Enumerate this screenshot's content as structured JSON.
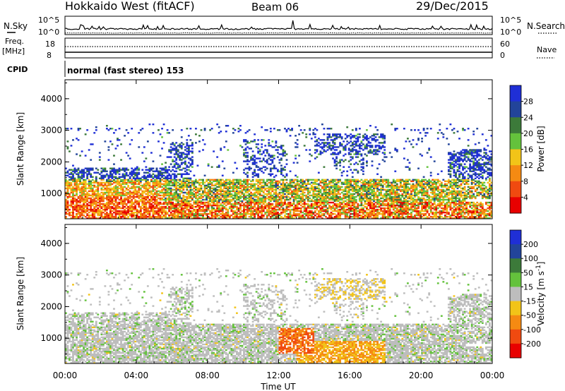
{
  "header": {
    "title": "Hokkaido West (fitACF)",
    "beam": "Beam 06",
    "date": "29/Dec/2015"
  },
  "top_panels": {
    "nsky_label": "N.Sky",
    "nsearch_label": "N.Search",
    "noise_ticks": [
      "10^5",
      "10^0"
    ],
    "freq_label": "Freq.",
    "freq_unit": "[MHz]",
    "freq_ticks": [
      "18",
      "8"
    ],
    "nave_label": "Nave",
    "nave_ticks": [
      "60",
      "0"
    ],
    "cpid_label": "CPID",
    "cpid_text": "normal (fast stereo) 153"
  },
  "x_axis": {
    "label": "Time UT",
    "ticks": [
      "00:00",
      "04:00",
      "08:00",
      "12:00",
      "16:00",
      "20:00",
      "00:00"
    ],
    "range_hours": [
      0,
      24
    ]
  },
  "colors": {
    "power": [
      "#1f2fd6",
      "#22449a",
      "#3c7a3a",
      "#64c23c",
      "#f2c418",
      "#f58a12",
      "#f04a10",
      "#e80000"
    ],
    "velocity": [
      "#1f2fd6",
      "#22449a",
      "#3c7a3a",
      "#64c23c",
      "#bdbdbd",
      "#f2c418",
      "#f58a12",
      "#f04a10",
      "#e80000"
    ],
    "noise_line": "#000000",
    "axis": "#000000"
  },
  "chart_data": [
    {
      "type": "heatmap",
      "title": "",
      "xlabel": "Time UT",
      "ylabel": "Slant Range [km]",
      "xlim_hours": [
        0,
        24
      ],
      "ylim": [
        200,
        4600
      ],
      "y_ticks": [
        "1000",
        "2000",
        "3000",
        "4000"
      ],
      "colorbar": {
        "label": "Power [dB]",
        "ticks": [
          "4",
          "8",
          "12",
          "16",
          "20",
          "24",
          "28"
        ],
        "range": [
          0,
          32
        ]
      }
    },
    {
      "type": "heatmap",
      "title": "",
      "xlabel": "Time UT",
      "ylabel": "Slant Range [km]",
      "xlim_hours": [
        0,
        24
      ],
      "ylim": [
        200,
        4600
      ],
      "y_ticks": [
        "1000",
        "2000",
        "3000",
        "4000"
      ],
      "colorbar": {
        "label": "Velocity [m s",
        "label_sup": "-1",
        "label_end": "]",
        "ticks": [
          "200",
          "100",
          "50",
          "15",
          "-15",
          "-50",
          "-100",
          "-200"
        ],
        "range": [
          -200,
          200
        ]
      }
    }
  ]
}
